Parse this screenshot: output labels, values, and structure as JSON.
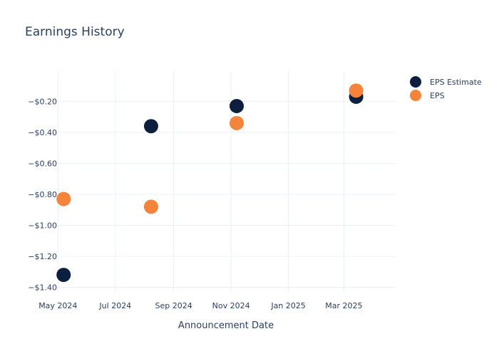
{
  "colors": {
    "estimate": "#0d1f3f",
    "eps": "#f5833a",
    "text": "#2a3f5f",
    "grid": "#ebf0f8"
  },
  "chart_data": {
    "type": "scatter",
    "title": "Earnings History",
    "xlabel": "Announcement Date",
    "ylabel": "",
    "x_tick_labels": [
      "May 2024",
      "Jul 2024",
      "Sep 2024",
      "Nov 2024",
      "Jan 2025",
      "Mar 2025"
    ],
    "x_tick_dates": [
      "2024-05-01",
      "2024-07-01",
      "2024-09-01",
      "2024-11-01",
      "2025-01-01",
      "2025-03-01"
    ],
    "xlim": [
      "2024-04-30",
      "2025-04-25"
    ],
    "y_ticks": [
      -0.2,
      -0.4,
      -0.6,
      -0.8,
      -1.0,
      -1.2,
      -1.4
    ],
    "y_tick_labels": [
      "−$0.20",
      "−$0.40",
      "−$0.60",
      "−$0.80",
      "−$1.00",
      "−$1.20",
      "−$1.40"
    ],
    "ylim": [
      -1.43,
      -0.005
    ],
    "legend_position": "top-right",
    "series": [
      {
        "name": "EPS Estimate",
        "color_key": "estimate",
        "points": [
          {
            "date": "2024-05-07",
            "value": -1.32
          },
          {
            "date": "2024-08-08",
            "value": -0.36
          },
          {
            "date": "2024-11-07",
            "value": -0.23
          },
          {
            "date": "2025-03-14",
            "value": -0.17
          }
        ]
      },
      {
        "name": "EPS",
        "color_key": "eps",
        "points": [
          {
            "date": "2024-05-07",
            "value": -0.83
          },
          {
            "date": "2024-08-08",
            "value": -0.88
          },
          {
            "date": "2024-11-07",
            "value": -0.34
          },
          {
            "date": "2025-03-14",
            "value": -0.13
          }
        ]
      }
    ]
  }
}
